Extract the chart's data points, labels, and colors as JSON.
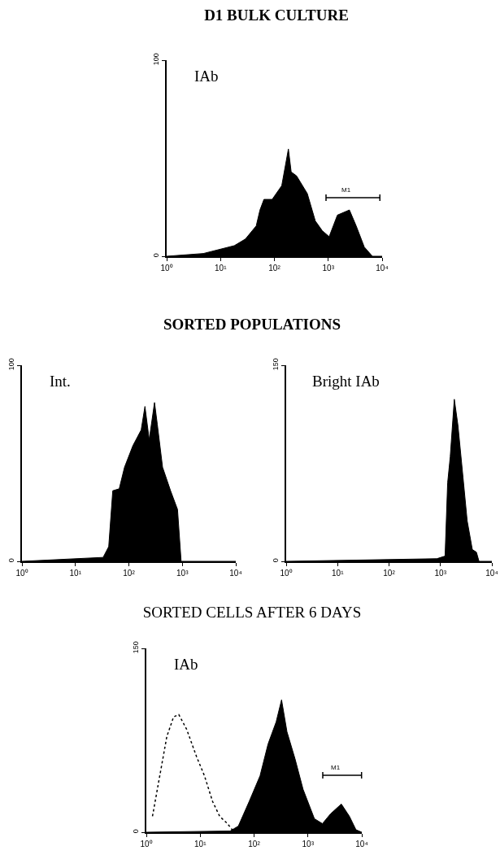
{
  "chart_data": [
    {
      "type": "area",
      "title": "D1 BULK CULTURE",
      "annotations": [
        "IAb",
        "M1"
      ],
      "log": "x",
      "grid": false,
      "xlim": [
        1,
        10000
      ],
      "xticks": [
        {
          "value": 1,
          "label": "10⁰"
        },
        {
          "value": 10,
          "label": "10¹"
        },
        {
          "value": 100,
          "label": "10²"
        },
        {
          "value": 1000,
          "label": "10³"
        },
        {
          "value": 10000,
          "label": "10⁴"
        }
      ],
      "ylim": [
        0,
        100
      ],
      "yticks": [
        0,
        100
      ],
      "series": [
        {
          "color": "#000000",
          "x": [
            1,
            4.8,
            18,
            29,
            46,
            54,
            64,
            91,
            137,
            182,
            205,
            258,
            408,
            575,
            776,
            1040,
            1480,
            2470,
            3300,
            4670,
            6600,
            10000
          ],
          "values": [
            0,
            1.4,
            5.4,
            8.8,
            15.5,
            23.6,
            29,
            29,
            36,
            54.7,
            43,
            41,
            32,
            18,
            13,
            10,
            21,
            23.6,
            15.5,
            4.7,
            0,
            0
          ]
        }
      ]
    },
    {
      "type": "area",
      "title": "SORTED POPULATIONS",
      "annotations": [
        "Int."
      ],
      "log": "x",
      "grid": false,
      "xlim": [
        1,
        10000
      ],
      "xticks": [
        {
          "value": 1,
          "label": "10⁰"
        },
        {
          "value": 10,
          "label": "10¹"
        },
        {
          "value": 100,
          "label": "10²"
        },
        {
          "value": 1000,
          "label": "10³"
        },
        {
          "value": 10000,
          "label": "10⁴"
        }
      ],
      "ylim": [
        0,
        100
      ],
      "yticks": [
        0,
        100
      ],
      "series": [
        {
          "color": "#000000",
          "x": [
            1,
            33,
            42,
            50,
            66,
            83,
            119,
            170,
            200,
            240,
            302,
            340,
            427,
            603,
            813,
            950,
            10000
          ],
          "values": [
            0,
            2,
            7.5,
            36,
            37,
            48,
            59,
            67,
            79,
            62,
            81,
            70,
            48,
            36,
            26.5,
            0,
            0
          ]
        }
      ]
    },
    {
      "type": "area",
      "annotations": [
        "Bright IAb"
      ],
      "log": "x",
      "grid": false,
      "xlim": [
        1,
        10000
      ],
      "xticks": [
        {
          "value": 1,
          "label": "10⁰"
        },
        {
          "value": 10,
          "label": "10¹"
        },
        {
          "value": 100,
          "label": "10²"
        },
        {
          "value": 1000,
          "label": "10³"
        },
        {
          "value": 10000,
          "label": "10⁴"
        }
      ],
      "ylim": [
        0,
        150
      ],
      "yticks": [
        0,
        150
      ],
      "series": [
        {
          "color": "#000000",
          "x": [
            1,
            850,
            1230,
            1380,
            1550,
            1860,
            2190,
            2750,
            3310,
            4170,
            5010,
            5620,
            10000
          ],
          "values": [
            0,
            2,
            4,
            60,
            80,
            124,
            104,
            64,
            31,
            9,
            7,
            0,
            0
          ]
        }
      ]
    },
    {
      "type": "area",
      "title": "SORTED CELLS AFTER 6 DAYS",
      "annotations": [
        "IAb",
        "M1"
      ],
      "log": "x",
      "grid": false,
      "xlim": [
        1,
        10000
      ],
      "xticks": [
        {
          "value": 1,
          "label": "10⁰"
        },
        {
          "value": 10,
          "label": "10¹"
        },
        {
          "value": 100,
          "label": "10²"
        },
        {
          "value": 1000,
          "label": "10³"
        },
        {
          "value": 10000,
          "label": "10⁴"
        }
      ],
      "ylim": [
        0,
        150
      ],
      "yticks": [
        0,
        150
      ],
      "series": [
        {
          "color": "#000000",
          "x": [
            1,
            36,
            51,
            81,
            129,
            182,
            257,
            324,
            408,
            575,
            813,
            1320,
            1860,
            2630,
            4170,
            5890,
            7800,
            10000
          ],
          "values": [
            0,
            1,
            5,
            25,
            46,
            72,
            90,
            108,
            82,
            60,
            35,
            11,
            7,
            15,
            23,
            13,
            2,
            0
          ]
        },
        {
          "type": "line",
          "line_style": "dotted",
          "color": "#000000",
          "x": [
            1.3,
            1.6,
            2.4,
            3.2,
            4.0,
            5.6,
            8.5,
            12,
            17,
            23,
            32,
            41
          ],
          "values": [
            13,
            35,
            78,
            94,
            96,
            84,
            62,
            46,
            25,
            13,
            7,
            1
          ]
        }
      ]
    }
  ]
}
